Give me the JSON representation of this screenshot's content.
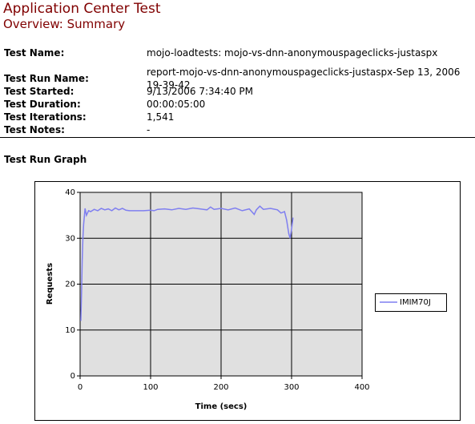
{
  "header": {
    "title": "Application Center Test",
    "subtitle": "Overview: Summary"
  },
  "fields": [
    {
      "label": "Test Name:",
      "value": "mojo-loadtests: mojo-vs-dnn-anonymouspageclicks-justaspx"
    },
    {
      "label": "Test Run Name:",
      "value": "report-mojo-vs-dnn-anonymouspageclicks-justaspx-Sep 13, 2006 19-39-42"
    },
    {
      "label": "Test Started:",
      "value": "9/13/2006 7:34:40 PM"
    },
    {
      "label": "Test Duration:",
      "value": "00:00:05:00"
    },
    {
      "label": "Test Iterations:",
      "value": "1,541"
    },
    {
      "label": "Test Notes:",
      "value": "-"
    }
  ],
  "section_title": "Test Run Graph",
  "chart_data": {
    "type": "line",
    "xlabel": "Time (secs)",
    "ylabel": "Requests",
    "xlim": [
      0,
      400
    ],
    "xticks": [
      0,
      100,
      200,
      300,
      400
    ],
    "ylim": [
      0,
      40
    ],
    "yticks": [
      0,
      10,
      20,
      30,
      40
    ],
    "grid": true,
    "legend": "right",
    "x": [
      1,
      2,
      3,
      4,
      5,
      7,
      9,
      12,
      15,
      20,
      25,
      30,
      35,
      40,
      45,
      50,
      55,
      60,
      65,
      70,
      80,
      90,
      100,
      105,
      110,
      120,
      130,
      140,
      150,
      160,
      170,
      180,
      185,
      190,
      200,
      210,
      220,
      230,
      240,
      247,
      250,
      255,
      260,
      270,
      280,
      285,
      290,
      293,
      296,
      298,
      300,
      302
    ],
    "series": [
      {
        "name": "IMIM70J",
        "color": "#7f7ff0",
        "values": [
          12,
          18,
          25,
          30,
          33,
          36.5,
          35,
          36,
          35.8,
          36.3,
          36,
          36.5,
          36.2,
          36.4,
          36,
          36.6,
          36.2,
          36.5,
          36.1,
          36,
          36,
          36,
          36.1,
          36,
          36.3,
          36.4,
          36.2,
          36.5,
          36.3,
          36.6,
          36.4,
          36.2,
          36.8,
          36.3,
          36.5,
          36.2,
          36.6,
          36,
          36.4,
          35.2,
          36.2,
          37,
          36.3,
          36.5,
          36.2,
          35.5,
          35.8,
          34,
          31,
          30,
          32,
          34.5
        ]
      }
    ]
  }
}
